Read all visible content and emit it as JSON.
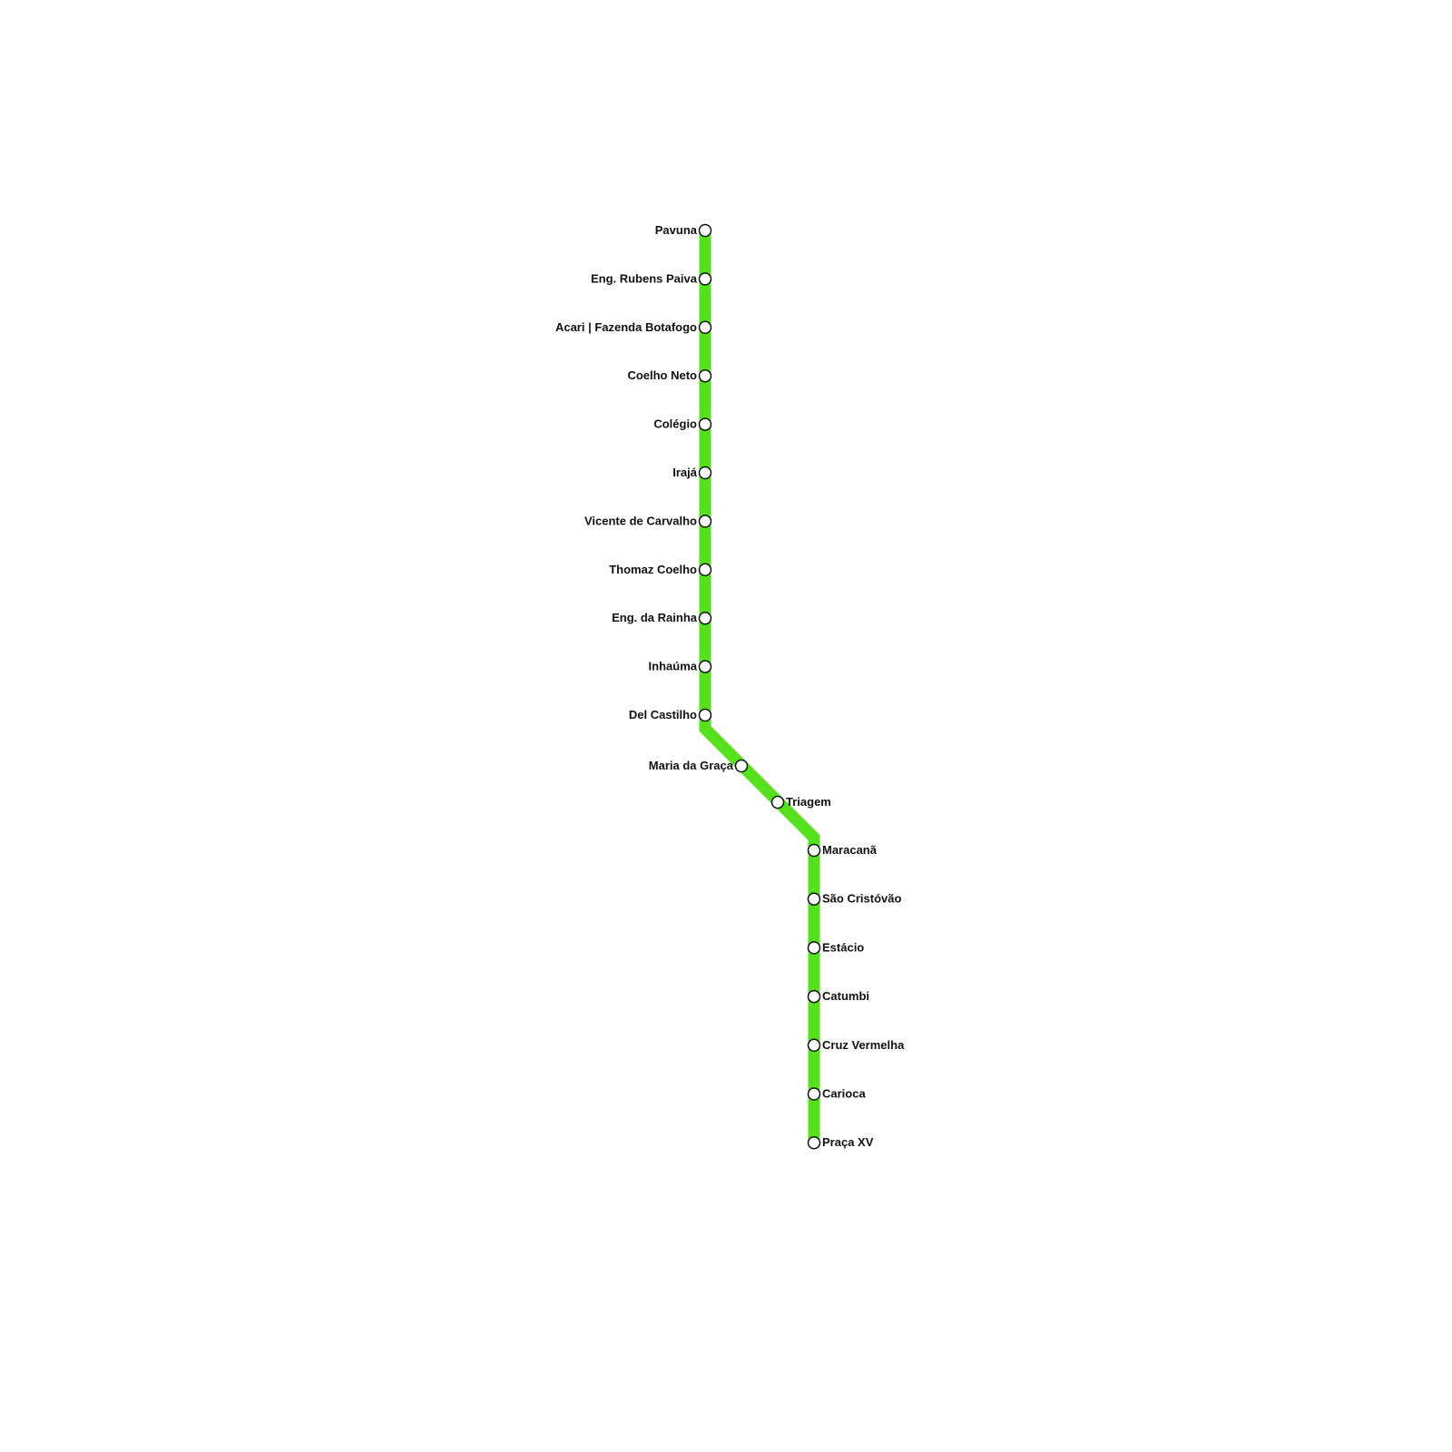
{
  "line": {
    "color": "#55e11c",
    "stations": [
      {
        "name": "Pavuna"
      },
      {
        "name": "Eng. Rubens Paiva"
      },
      {
        "name": "Acari | Fazenda Botafogo"
      },
      {
        "name": "Coelho Neto"
      },
      {
        "name": "Colégio"
      },
      {
        "name": "Irajá"
      },
      {
        "name": "Vicente de Carvalho"
      },
      {
        "name": "Thomaz Coelho"
      },
      {
        "name": "Eng. da Rainha"
      },
      {
        "name": "Inhaúma"
      },
      {
        "name": "Del Castilho"
      },
      {
        "name": "Maria da Graça"
      },
      {
        "name": "Triagem"
      },
      {
        "name": "Maracanã"
      },
      {
        "name": "São Cristóvão"
      },
      {
        "name": "Estácio"
      },
      {
        "name": "Catumbi"
      },
      {
        "name": "Cruz Vermelha"
      },
      {
        "name": "Carioca"
      },
      {
        "name": "Praça XV"
      }
    ]
  }
}
